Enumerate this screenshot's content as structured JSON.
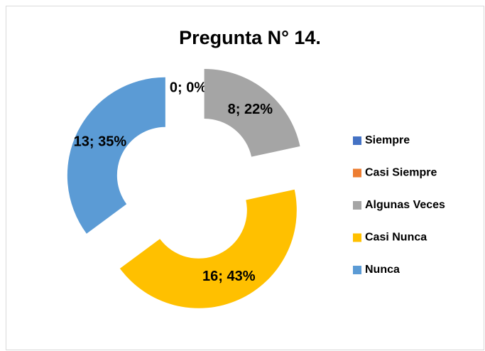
{
  "chart_data": {
    "type": "doughnut",
    "title": "Pregunta N° 14.",
    "categories": [
      "Siempre",
      "Casi Siempre",
      "Algunas Veces",
      "Casi Nunca",
      "Nunca"
    ],
    "values": [
      0,
      0,
      8,
      16,
      13
    ],
    "value_labels": [
      "0; 0%",
      null,
      "8; 22%",
      "16; 43%",
      "13; 35%"
    ],
    "colors": [
      "#4472c4",
      "#ed7d31",
      "#a5a5a5",
      "#ffc000",
      "#5b9bd5"
    ],
    "legend": "right"
  }
}
